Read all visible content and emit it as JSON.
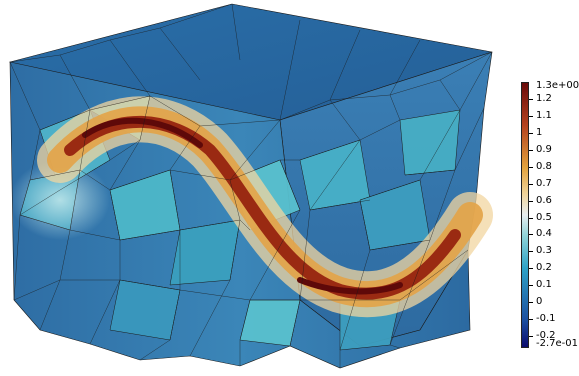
{
  "view": {
    "description_type": "scalar-field-3d-render",
    "colormap": "diverging blue–teal–white–orange–dark-red",
    "colors": {
      "background": "#ffffff",
      "mesh_edges": "#1a1a1a",
      "low": "#0b0b6e",
      "mid_low": "#2fa3c7",
      "mid": "#e8eef0",
      "mid_high": "#e2a23d",
      "high": "#6a0a0a"
    }
  },
  "colorbar": {
    "max_label": "1.3e+00",
    "min_label": "-2.7e-01",
    "ticks": [
      {
        "value": 1.2,
        "label": "1.2"
      },
      {
        "value": 1.1,
        "label": "1.1"
      },
      {
        "value": 1.0,
        "label": "1"
      },
      {
        "value": 0.9,
        "label": "0.9"
      },
      {
        "value": 0.8,
        "label": "0.8"
      },
      {
        "value": 0.7,
        "label": "0.7"
      },
      {
        "value": 0.6,
        "label": "0.6"
      },
      {
        "value": 0.5,
        "label": "0.5"
      },
      {
        "value": 0.4,
        "label": "0.4"
      },
      {
        "value": 0.3,
        "label": "0.3"
      },
      {
        "value": 0.2,
        "label": "0.2"
      },
      {
        "value": 0.1,
        "label": "0.1"
      },
      {
        "value": 0.0,
        "label": "0"
      },
      {
        "value": -0.1,
        "label": "-0.1"
      },
      {
        "value": -0.2,
        "label": "-0.2"
      }
    ],
    "range": [
      -0.27,
      1.3
    ]
  }
}
